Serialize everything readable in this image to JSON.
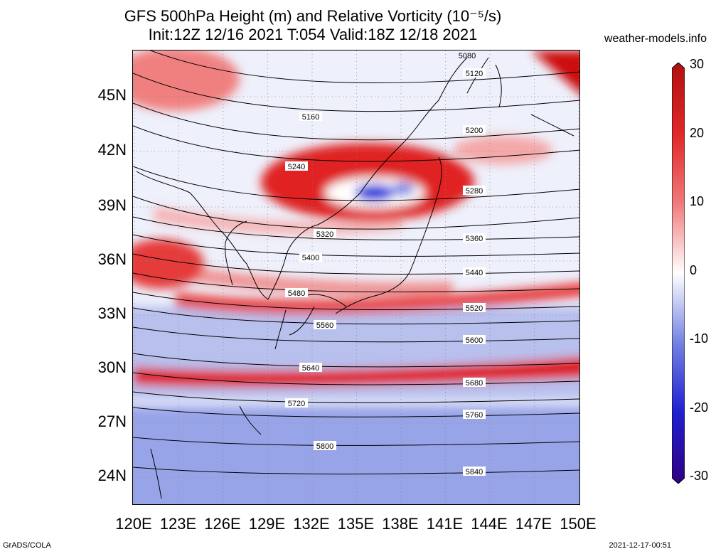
{
  "title_line1": "GFS 500hPa Height (m) and Relative Vorticity (10⁻⁵/s)",
  "title_line2": "Init:12Z 12/16 2021 T:054 Valid:18Z 12/18 2021",
  "brand": "weather-models.info",
  "lat_labels": [
    "45N",
    "42N",
    "39N",
    "36N",
    "33N",
    "30N",
    "27N",
    "24N"
  ],
  "lon_labels": [
    "120E",
    "123E",
    "126E",
    "129E",
    "132E",
    "135E",
    "138E",
    "141E",
    "144E",
    "147E",
    "150E"
  ],
  "colorbar": {
    "labels": [
      "30",
      "20",
      "10",
      "0",
      "-10",
      "-20",
      "-30"
    ],
    "colors": [
      "#b01010",
      "#e03030",
      "#f07070",
      "#ffffff",
      "#7080e0",
      "#2020d0",
      "#300080"
    ]
  },
  "contours": [
    {
      "v": "5120",
      "labels": []
    },
    {
      "v": "5160",
      "labels": []
    },
    {
      "v": "5200",
      "labels": []
    },
    {
      "v": "5240",
      "labels": []
    },
    {
      "v": "5280",
      "labels": []
    },
    {
      "v": "5320",
      "labels": []
    },
    {
      "v": "5360",
      "labels": []
    },
    {
      "v": "5400",
      "labels": []
    },
    {
      "v": "5440",
      "labels": []
    },
    {
      "v": "5480",
      "labels": []
    },
    {
      "v": "5520",
      "labels": []
    },
    {
      "v": "5560",
      "labels": []
    },
    {
      "v": "5600",
      "labels": []
    },
    {
      "v": "5640",
      "labels": []
    },
    {
      "v": "5680",
      "labels": []
    },
    {
      "v": "5720",
      "labels": []
    },
    {
      "v": "5760",
      "labels": []
    },
    {
      "v": "5800",
      "labels": []
    },
    {
      "v": "5840",
      "labels": []
    }
  ],
  "top_label": "5080",
  "footer_left": "GrADS/COLA",
  "footer_right": "2021-12-17-00:51"
}
